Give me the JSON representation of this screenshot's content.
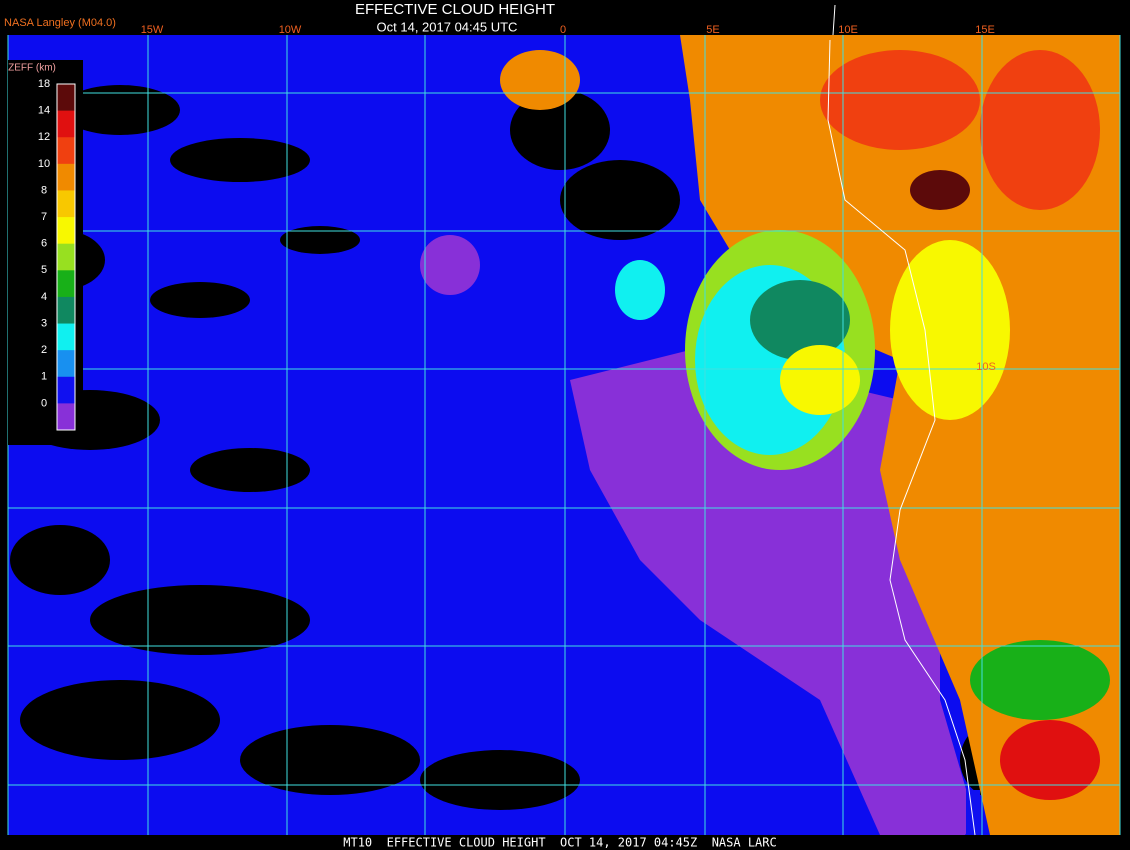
{
  "header": {
    "source": "NASA Langley (M04.0)",
    "title": "EFFECTIVE CLOUD HEIGHT",
    "timestamp": "Oct 14, 2017 04:45 UTC"
  },
  "legend": {
    "title": "ZEFF (km)",
    "labels": [
      "18",
      "14",
      "12",
      "10",
      "8",
      "7",
      "6",
      "5",
      "4",
      "3",
      "2",
      "1",
      "0"
    ],
    "colors": [
      "#5c0a0a",
      "#e01010",
      "#f04010",
      "#f08a00",
      "#f8c800",
      "#f8f800",
      "#98e020",
      "#18b018",
      "#108860",
      "#10f0f0",
      "#1890f0",
      "#1010f0",
      "#8830d8"
    ]
  },
  "map": {
    "longitude_labels": [
      "15W",
      "10W",
      "0",
      "5E",
      "10E",
      "15E"
    ],
    "latitude_labels": [
      "10S"
    ]
  },
  "footer": "MT10  EFFECTIVE CLOUD HEIGHT  OCT 14, 2017 04:45Z  NASA LARC"
}
